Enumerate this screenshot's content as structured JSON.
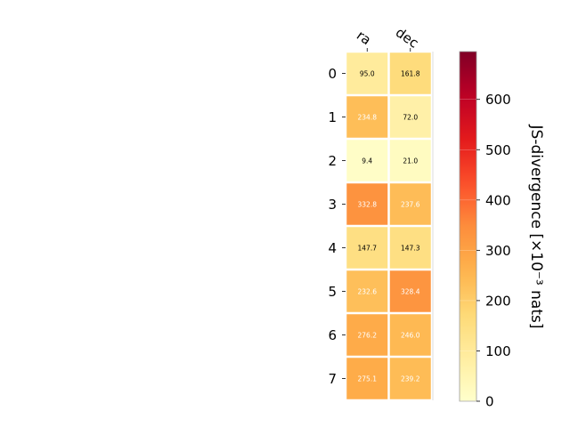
{
  "chart_data": {
    "type": "heatmap",
    "x_categories": [
      "ra",
      "dec"
    ],
    "y_categories": [
      "0",
      "1",
      "2",
      "3",
      "4",
      "5",
      "6",
      "7"
    ],
    "values": [
      [
        95.0,
        161.8
      ],
      [
        234.8,
        72.0
      ],
      [
        9.4,
        21.0
      ],
      [
        332.8,
        237.6
      ],
      [
        147.7,
        147.3
      ],
      [
        232.6,
        328.4
      ],
      [
        276.2,
        246.0
      ],
      [
        275.1,
        239.2
      ]
    ],
    "value_labels": [
      [
        "95.0",
        "161.8"
      ],
      [
        "234.8",
        "72.0"
      ],
      [
        "9.4",
        "21.0"
      ],
      [
        "332.8",
        "237.6"
      ],
      [
        "147.7",
        "147.3"
      ],
      [
        "232.6",
        "328.4"
      ],
      [
        "276.2",
        "246.0"
      ],
      [
        "275.1",
        "239.2"
      ]
    ],
    "colormap": "YlOrRd",
    "colorbar": {
      "label": "JS-divergence [×10⁻³ nats]",
      "range": [
        0,
        695
      ],
      "ticks": [
        0,
        100,
        200,
        300,
        400,
        500,
        600
      ],
      "tick_labels": [
        "0",
        "100",
        "200",
        "300",
        "400",
        "500",
        "600"
      ]
    },
    "x_tick_position": "top",
    "grid": false
  }
}
